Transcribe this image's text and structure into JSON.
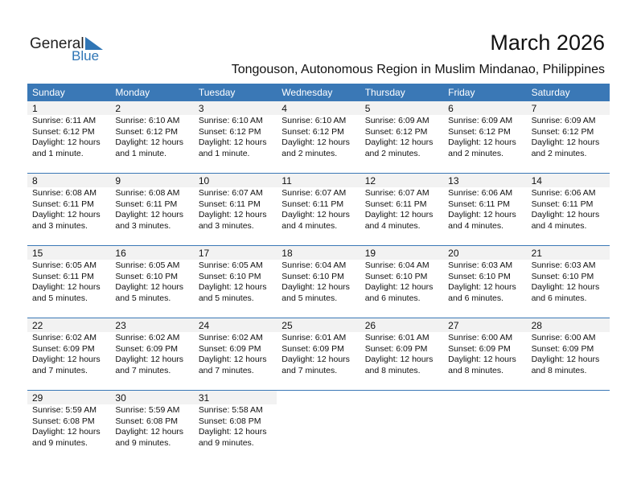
{
  "logo": {
    "word1": "General",
    "word2": "Blue"
  },
  "header": {
    "title": "March 2026",
    "subtitle": "Tongouson, Autonomous Region in Muslim Mindanao, Philippines"
  },
  "weekdays": [
    "Sunday",
    "Monday",
    "Tuesday",
    "Wednesday",
    "Thursday",
    "Friday",
    "Saturday"
  ],
  "days": [
    {
      "day": 1,
      "lines": [
        "Sunrise: 6:11 AM",
        "Sunset: 6:12 PM",
        "Daylight: 12 hours",
        "and 1 minute."
      ]
    },
    {
      "day": 2,
      "lines": [
        "Sunrise: 6:10 AM",
        "Sunset: 6:12 PM",
        "Daylight: 12 hours",
        "and 1 minute."
      ]
    },
    {
      "day": 3,
      "lines": [
        "Sunrise: 6:10 AM",
        "Sunset: 6:12 PM",
        "Daylight: 12 hours",
        "and 1 minute."
      ]
    },
    {
      "day": 4,
      "lines": [
        "Sunrise: 6:10 AM",
        "Sunset: 6:12 PM",
        "Daylight: 12 hours",
        "and 2 minutes."
      ]
    },
    {
      "day": 5,
      "lines": [
        "Sunrise: 6:09 AM",
        "Sunset: 6:12 PM",
        "Daylight: 12 hours",
        "and 2 minutes."
      ]
    },
    {
      "day": 6,
      "lines": [
        "Sunrise: 6:09 AM",
        "Sunset: 6:12 PM",
        "Daylight: 12 hours",
        "and 2 minutes."
      ]
    },
    {
      "day": 7,
      "lines": [
        "Sunrise: 6:09 AM",
        "Sunset: 6:12 PM",
        "Daylight: 12 hours",
        "and 2 minutes."
      ]
    },
    {
      "day": 8,
      "lines": [
        "Sunrise: 6:08 AM",
        "Sunset: 6:11 PM",
        "Daylight: 12 hours",
        "and 3 minutes."
      ]
    },
    {
      "day": 9,
      "lines": [
        "Sunrise: 6:08 AM",
        "Sunset: 6:11 PM",
        "Daylight: 12 hours",
        "and 3 minutes."
      ]
    },
    {
      "day": 10,
      "lines": [
        "Sunrise: 6:07 AM",
        "Sunset: 6:11 PM",
        "Daylight: 12 hours",
        "and 3 minutes."
      ]
    },
    {
      "day": 11,
      "lines": [
        "Sunrise: 6:07 AM",
        "Sunset: 6:11 PM",
        "Daylight: 12 hours",
        "and 4 minutes."
      ]
    },
    {
      "day": 12,
      "lines": [
        "Sunrise: 6:07 AM",
        "Sunset: 6:11 PM",
        "Daylight: 12 hours",
        "and 4 minutes."
      ]
    },
    {
      "day": 13,
      "lines": [
        "Sunrise: 6:06 AM",
        "Sunset: 6:11 PM",
        "Daylight: 12 hours",
        "and 4 minutes."
      ]
    },
    {
      "day": 14,
      "lines": [
        "Sunrise: 6:06 AM",
        "Sunset: 6:11 PM",
        "Daylight: 12 hours",
        "and 4 minutes."
      ]
    },
    {
      "day": 15,
      "lines": [
        "Sunrise: 6:05 AM",
        "Sunset: 6:11 PM",
        "Daylight: 12 hours",
        "and 5 minutes."
      ]
    },
    {
      "day": 16,
      "lines": [
        "Sunrise: 6:05 AM",
        "Sunset: 6:10 PM",
        "Daylight: 12 hours",
        "and 5 minutes."
      ]
    },
    {
      "day": 17,
      "lines": [
        "Sunrise: 6:05 AM",
        "Sunset: 6:10 PM",
        "Daylight: 12 hours",
        "and 5 minutes."
      ]
    },
    {
      "day": 18,
      "lines": [
        "Sunrise: 6:04 AM",
        "Sunset: 6:10 PM",
        "Daylight: 12 hours",
        "and 5 minutes."
      ]
    },
    {
      "day": 19,
      "lines": [
        "Sunrise: 6:04 AM",
        "Sunset: 6:10 PM",
        "Daylight: 12 hours",
        "and 6 minutes."
      ]
    },
    {
      "day": 20,
      "lines": [
        "Sunrise: 6:03 AM",
        "Sunset: 6:10 PM",
        "Daylight: 12 hours",
        "and 6 minutes."
      ]
    },
    {
      "day": 21,
      "lines": [
        "Sunrise: 6:03 AM",
        "Sunset: 6:10 PM",
        "Daylight: 12 hours",
        "and 6 minutes."
      ]
    },
    {
      "day": 22,
      "lines": [
        "Sunrise: 6:02 AM",
        "Sunset: 6:09 PM",
        "Daylight: 12 hours",
        "and 7 minutes."
      ]
    },
    {
      "day": 23,
      "lines": [
        "Sunrise: 6:02 AM",
        "Sunset: 6:09 PM",
        "Daylight: 12 hours",
        "and 7 minutes."
      ]
    },
    {
      "day": 24,
      "lines": [
        "Sunrise: 6:02 AM",
        "Sunset: 6:09 PM",
        "Daylight: 12 hours",
        "and 7 minutes."
      ]
    },
    {
      "day": 25,
      "lines": [
        "Sunrise: 6:01 AM",
        "Sunset: 6:09 PM",
        "Daylight: 12 hours",
        "and 7 minutes."
      ]
    },
    {
      "day": 26,
      "lines": [
        "Sunrise: 6:01 AM",
        "Sunset: 6:09 PM",
        "Daylight: 12 hours",
        "and 8 minutes."
      ]
    },
    {
      "day": 27,
      "lines": [
        "Sunrise: 6:00 AM",
        "Sunset: 6:09 PM",
        "Daylight: 12 hours",
        "and 8 minutes."
      ]
    },
    {
      "day": 28,
      "lines": [
        "Sunrise: 6:00 AM",
        "Sunset: 6:09 PM",
        "Daylight: 12 hours",
        "and 8 minutes."
      ]
    },
    {
      "day": 29,
      "lines": [
        "Sunrise: 5:59 AM",
        "Sunset: 6:08 PM",
        "Daylight: 12 hours",
        "and 9 minutes."
      ]
    },
    {
      "day": 30,
      "lines": [
        "Sunrise: 5:59 AM",
        "Sunset: 6:08 PM",
        "Daylight: 12 hours",
        "and 9 minutes."
      ]
    },
    {
      "day": 31,
      "lines": [
        "Sunrise: 5:58 AM",
        "Sunset: 6:08 PM",
        "Daylight: 12 hours",
        "and 9 minutes."
      ]
    }
  ]
}
